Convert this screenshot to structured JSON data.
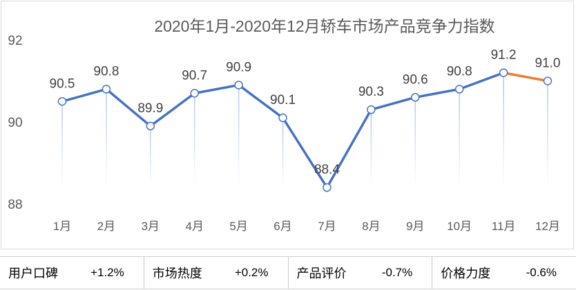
{
  "chart_data": {
    "type": "line",
    "title": "2020年1月-2020年12月轿车市场产品竞争力指数",
    "categories": [
      "1月",
      "2月",
      "3月",
      "4月",
      "5月",
      "6月",
      "7月",
      "8月",
      "9月",
      "10月",
      "11月",
      "12月"
    ],
    "values": [
      90.5,
      90.8,
      89.9,
      90.7,
      90.9,
      90.1,
      88.4,
      90.3,
      90.6,
      90.8,
      91.2,
      91.0
    ],
    "labels": [
      "90.5",
      "90.8",
      "89.9",
      "90.7",
      "90.9",
      "90.1",
      "88.4",
      "90.3",
      "90.6",
      "90.8",
      "91.2",
      "91.0"
    ],
    "ylim": [
      88,
      92
    ],
    "yticks": [
      "88",
      "90",
      "92"
    ],
    "grid": false,
    "colors": {
      "line": "#4472c4",
      "last_segment": "#ed7d31",
      "drop_line": "#b4c7e7"
    }
  },
  "stats": [
    {
      "label": "用户口碑",
      "value": "+1.2%"
    },
    {
      "label": "市场热度",
      "value": "+0.2%"
    },
    {
      "label": "产品评价",
      "value": "-0.7%"
    },
    {
      "label": "价格力度",
      "value": "-0.6%"
    }
  ]
}
